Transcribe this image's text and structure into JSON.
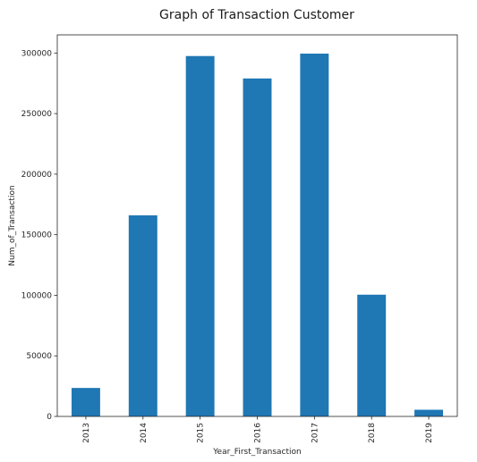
{
  "chart_data": {
    "type": "bar",
    "title": "Graph of Transaction Customer",
    "xlabel": "Year_First_Transaction",
    "ylabel": "Num_of_Transaction",
    "categories": [
      "2013",
      "2014",
      "2015",
      "2016",
      "2017",
      "2018",
      "2019"
    ],
    "values": [
      23500,
      166000,
      297500,
      279000,
      299500,
      100500,
      5500
    ],
    "ylim": [
      0,
      315000
    ],
    "yticks": [
      0,
      50000,
      100000,
      150000,
      200000,
      250000,
      300000
    ],
    "ytick_labels": [
      "0",
      "50000",
      "100000",
      "150000",
      "200000",
      "250000",
      "300000"
    ],
    "grid": false,
    "bar_color": "#1f77b4"
  }
}
